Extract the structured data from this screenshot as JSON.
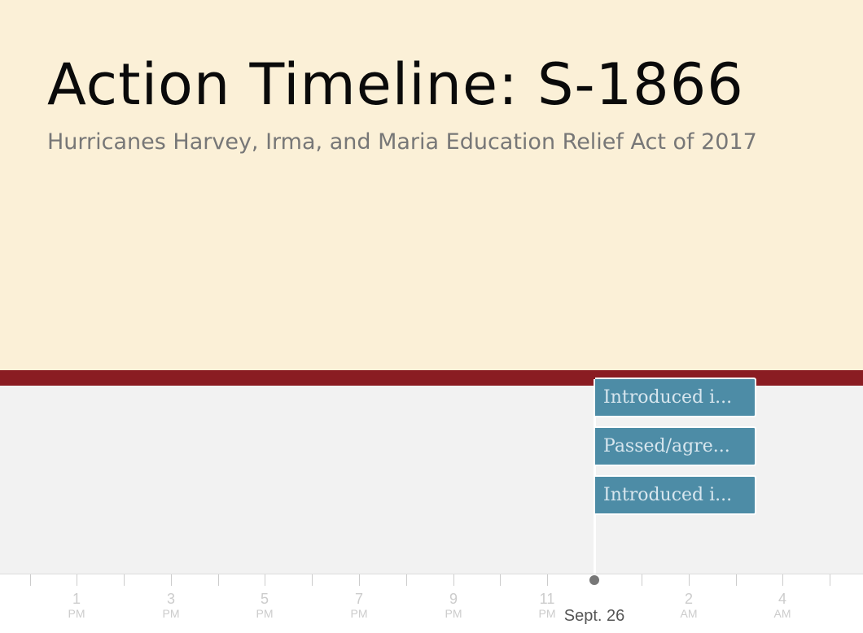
{
  "header": {
    "title": "Action Timeline: S-1866",
    "subtitle": "Hurricanes Harvey, Irma, and Maria Education Relief Act of 2017"
  },
  "events": [
    {
      "label": "Introduced i..."
    },
    {
      "label": "Passed/agre..."
    },
    {
      "label": "Introduced i..."
    }
  ],
  "axis": {
    "ticks": [
      {
        "num": "1",
        "ampm": "PM"
      },
      {
        "num": "3",
        "ampm": "PM"
      },
      {
        "num": "5",
        "ampm": "PM"
      },
      {
        "num": "7",
        "ampm": "PM"
      },
      {
        "num": "9",
        "ampm": "PM"
      },
      {
        "num": "11",
        "ampm": "PM"
      },
      {
        "num": "2",
        "ampm": "AM"
      },
      {
        "num": "4",
        "ampm": "AM"
      }
    ],
    "current_date": "Sept. 26"
  },
  "colors": {
    "header_bg": "#fbf0d7",
    "band": "#8a1c22",
    "card": "#4d8ca6",
    "content_bg": "#f2f2f2"
  }
}
